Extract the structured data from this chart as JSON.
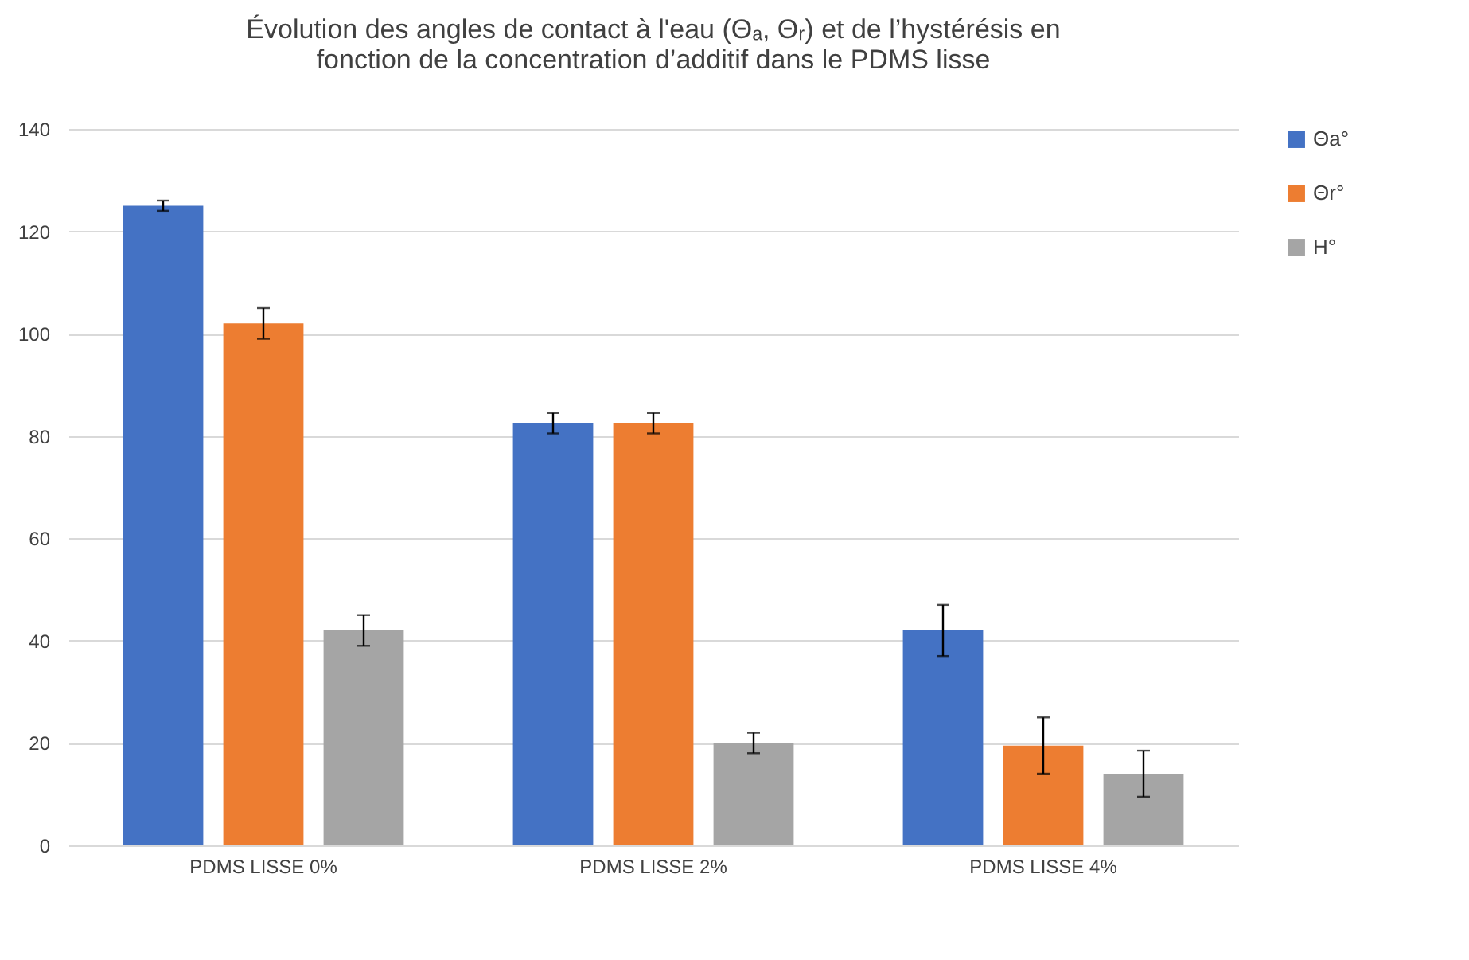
{
  "chart_data": {
    "type": "bar",
    "title": "Évolution des angles de contact à l'eau (Θₐ, Θᵣ) et de l’hystérésis en\nfonction de la concentration d’additif dans le PDMS lisse",
    "categories": [
      "PDMS  LISSE 0%",
      "PDMS  LISSE 2%",
      "PDMS  LISSE 4%"
    ],
    "series": [
      {
        "name": "Θa°",
        "color": "#4472c4",
        "values": [
          125,
          82.5,
          42
        ],
        "errors": [
          1,
          2,
          5
        ]
      },
      {
        "name": "Θr°",
        "color": "#ed7d31",
        "values": [
          102,
          82.5,
          19.5
        ],
        "errors": [
          3,
          2,
          5.5
        ]
      },
      {
        "name": "H°",
        "color": "#a5a5a5",
        "values": [
          42,
          20,
          14
        ],
        "errors": [
          3,
          2,
          4.5
        ]
      }
    ],
    "ylim": [
      0,
      140
    ],
    "yticks": [
      0,
      20,
      40,
      60,
      80,
      100,
      120,
      140
    ],
    "grid": "y",
    "legend": "right"
  }
}
